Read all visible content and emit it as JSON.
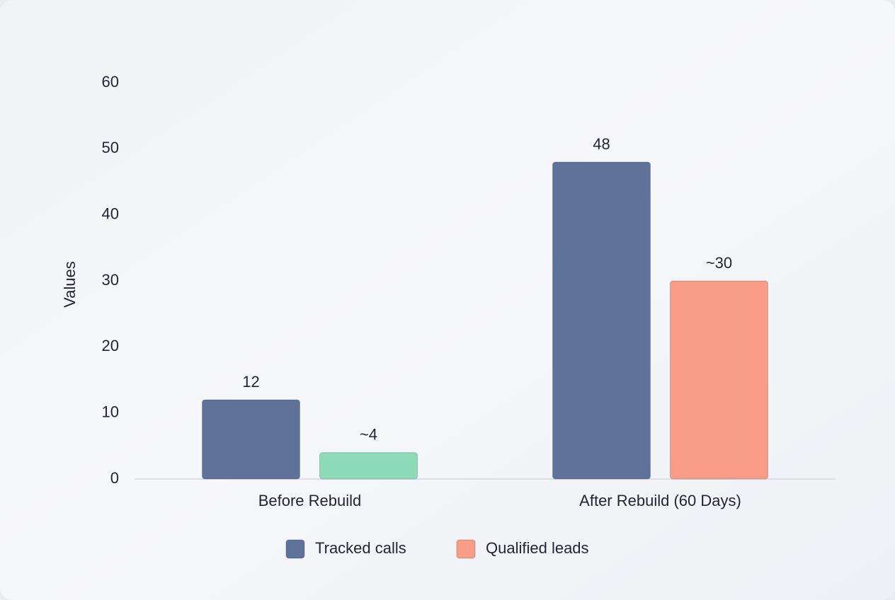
{
  "chart_data": {
    "type": "bar",
    "y_label": "Values",
    "categories": [
      "Before Rebuild",
      "After Rebuild (60 Days)"
    ],
    "series": [
      {
        "name": "Tracked calls",
        "color": "#5f7399",
        "values": [
          12,
          48
        ]
      },
      {
        "name": "Qualified leads",
        "color": "#f99c87",
        "colors": [
          "#8edbb8",
          "#f99c87"
        ],
        "values": [
          4,
          30
        ],
        "value_labels": [
          "~4",
          "~30"
        ]
      }
    ],
    "ylim": [
      0,
      60
    ],
    "yticks": [
      0,
      10,
      20,
      30,
      40,
      50,
      60
    ],
    "grid": false,
    "legend": "bottom"
  }
}
